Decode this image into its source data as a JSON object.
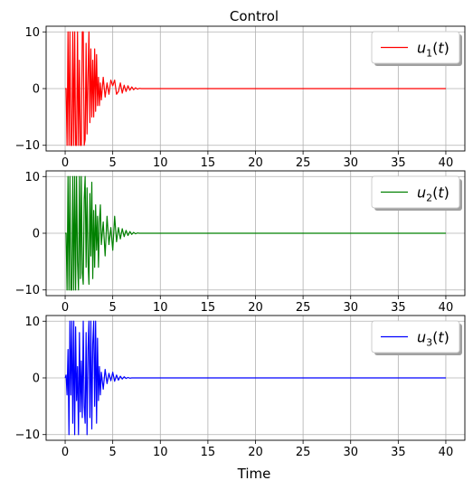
{
  "figure": {
    "title": "Control",
    "xlabel": "Time"
  },
  "chart_data": [
    {
      "type": "line",
      "title": "Control",
      "xlabel": "",
      "ylabel": "",
      "xlim": [
        -2,
        42
      ],
      "ylim": [
        -11,
        11
      ],
      "xticks": [
        0,
        5,
        10,
        15,
        20,
        25,
        30,
        35,
        40
      ],
      "yticks": [
        -10,
        0,
        10
      ],
      "grid": true,
      "legend": "top-right",
      "series": [
        {
          "name": "u1(t)",
          "legend_base": "u",
          "legend_sub": "1",
          "legend_suffix": "(t)",
          "color": "#ff0000",
          "x": [
            0,
            0.1,
            0.2,
            0.3,
            0.4,
            0.5,
            0.6,
            0.7,
            0.8,
            0.9,
            1.0,
            1.1,
            1.2,
            1.3,
            1.4,
            1.5,
            1.6,
            1.7,
            1.8,
            1.9,
            2.0,
            2.1,
            2.2,
            2.3,
            2.4,
            2.5,
            2.6,
            2.7,
            2.8,
            2.9,
            3.0,
            3.1,
            3.2,
            3.3,
            3.4,
            3.5,
            3.6,
            3.7,
            3.8,
            4.0,
            4.2,
            4.4,
            4.6,
            4.8,
            5.0,
            5.2,
            5.4,
            5.6,
            5.8,
            6.0,
            6.2,
            6.4,
            6.6,
            6.8,
            7.0,
            7.2,
            7.4,
            7.6,
            7.8,
            8.0,
            8.5,
            9.0,
            40
          ],
          "y": [
            0,
            0,
            -10,
            10,
            -10,
            10,
            -10,
            -10,
            10,
            -10,
            10,
            -10,
            -10,
            10,
            -10,
            5,
            -10,
            -10,
            10,
            10,
            -10,
            -9,
            8,
            -8,
            2,
            10,
            -6,
            7,
            -5,
            5,
            -5,
            7,
            -4,
            6,
            -3,
            2,
            -3,
            1,
            -2,
            2,
            -1.5,
            1,
            -1,
            1.5,
            0.5,
            1.5,
            -1,
            -0.5,
            1,
            -0.8,
            0.6,
            -0.5,
            0.5,
            -0.3,
            0.3,
            -0.2,
            0.15,
            -0.1,
            0.05,
            0,
            0,
            0,
            0
          ]
        }
      ]
    },
    {
      "type": "line",
      "title": "",
      "xlabel": "",
      "ylabel": "",
      "xlim": [
        -2,
        42
      ],
      "ylim": [
        -11,
        11
      ],
      "xticks": [
        0,
        5,
        10,
        15,
        20,
        25,
        30,
        35,
        40
      ],
      "yticks": [
        -10,
        0,
        10
      ],
      "grid": true,
      "legend": "top-right",
      "series": [
        {
          "name": "u2(t)",
          "legend_base": "u",
          "legend_sub": "2",
          "legend_suffix": "(t)",
          "color": "#008000",
          "x": [
            0,
            0.1,
            0.2,
            0.3,
            0.4,
            0.5,
            0.6,
            0.7,
            0.8,
            0.9,
            1.0,
            1.1,
            1.2,
            1.3,
            1.4,
            1.5,
            1.6,
            1.7,
            1.8,
            1.9,
            2.0,
            2.1,
            2.2,
            2.3,
            2.4,
            2.5,
            2.6,
            2.7,
            2.8,
            2.9,
            3.0,
            3.1,
            3.2,
            3.3,
            3.4,
            3.5,
            3.6,
            3.7,
            3.8,
            4.0,
            4.2,
            4.4,
            4.6,
            4.8,
            5.0,
            5.2,
            5.4,
            5.6,
            5.8,
            6.0,
            6.2,
            6.4,
            6.6,
            6.8,
            7.0,
            7.2,
            7.4,
            7.6,
            7.8,
            8.0,
            8.5,
            9.0,
            40
          ],
          "y": [
            0,
            0,
            -10,
            10,
            -10,
            10,
            -10,
            -10,
            10,
            -10,
            10,
            -10,
            10,
            -5,
            -10,
            10,
            -8,
            10,
            -7,
            -9,
            6,
            10,
            -6,
            8,
            -5,
            -9,
            7,
            -4,
            9,
            -8,
            4,
            -6,
            5,
            -3,
            3,
            -6,
            2,
            5,
            -2,
            2,
            -4,
            3,
            -2,
            1,
            -3,
            3,
            -1.5,
            1,
            -1,
            0.8,
            -0.6,
            0.5,
            -0.4,
            0.3,
            -0.2,
            0.15,
            -0.1,
            0.05,
            0,
            0,
            0,
            0,
            0
          ]
        }
      ]
    },
    {
      "type": "line",
      "title": "",
      "xlabel": "Time",
      "ylabel": "",
      "xlim": [
        -2,
        42
      ],
      "ylim": [
        -11,
        11
      ],
      "xticks": [
        0,
        5,
        10,
        15,
        20,
        25,
        30,
        35,
        40
      ],
      "yticks": [
        -10,
        0,
        10
      ],
      "grid": true,
      "legend": "top-right",
      "series": [
        {
          "name": "u3(t)",
          "legend_base": "u",
          "legend_sub": "3",
          "legend_suffix": "(t)",
          "color": "#0000ff",
          "x": [
            0,
            0.1,
            0.2,
            0.3,
            0.4,
            0.5,
            0.6,
            0.7,
            0.8,
            0.9,
            1.0,
            1.1,
            1.2,
            1.3,
            1.4,
            1.5,
            1.6,
            1.7,
            1.8,
            1.9,
            2.0,
            2.1,
            2.2,
            2.3,
            2.4,
            2.5,
            2.6,
            2.7,
            2.8,
            2.9,
            3.0,
            3.1,
            3.2,
            3.3,
            3.4,
            3.5,
            3.6,
            3.7,
            3.8,
            4.0,
            4.2,
            4.4,
            4.6,
            4.8,
            5.0,
            5.2,
            5.4,
            5.6,
            5.8,
            6.0,
            6.2,
            6.4,
            6.6,
            6.8,
            7.0,
            7.2,
            7.4,
            7.6,
            7.8,
            8.0,
            8.5,
            9.0,
            40
          ],
          "y": [
            0,
            0.5,
            -3,
            5,
            -10,
            10,
            -3,
            10,
            -8,
            10,
            -10,
            9,
            -4,
            2,
            -10,
            8,
            -6,
            3,
            -7,
            10,
            -5,
            -8,
            8,
            -10,
            5,
            10,
            -7,
            10,
            -9,
            6,
            10,
            -5,
            10,
            -8,
            7,
            -4,
            2,
            -3,
            1,
            -2,
            1.5,
            -1,
            0.8,
            -0.5,
            1,
            -0.6,
            0.5,
            -0.4,
            0.3,
            -0.2,
            0.2,
            -0.1,
            0.08,
            -0.05,
            0,
            0,
            0,
            0,
            0,
            0,
            0,
            0,
            0
          ]
        }
      ]
    }
  ]
}
